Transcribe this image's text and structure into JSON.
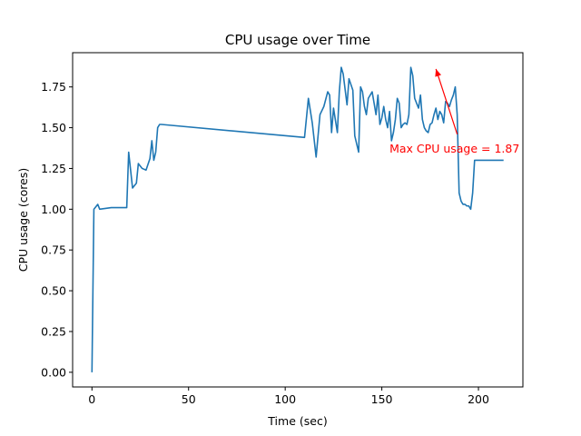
{
  "chart_data": {
    "type": "line",
    "title": "CPU usage over Time",
    "xlabel": "Time (sec)",
    "ylabel": "CPU usage (cores)",
    "xlim": [
      -10,
      223
    ],
    "ylim": [
      -0.09,
      1.96
    ],
    "xticks": [
      0,
      50,
      100,
      150,
      200
    ],
    "xtick_labels": [
      "0",
      "50",
      "100",
      "150",
      "200"
    ],
    "yticks": [
      0.0,
      0.25,
      0.5,
      0.75,
      1.0,
      1.25,
      1.5,
      1.75
    ],
    "ytick_labels": [
      "0.00",
      "0.25",
      "0.50",
      "0.75",
      "1.00",
      "1.25",
      "1.50",
      "1.75"
    ],
    "grid": false,
    "line_color": "#1f77b4",
    "series": [
      {
        "x": [
          0,
          1,
          3,
          4,
          10,
          18,
          19,
          21,
          23,
          24,
          26,
          28,
          30,
          31,
          32,
          33,
          34,
          35,
          36,
          110,
          112,
          114,
          116,
          118,
          120,
          122,
          123,
          124,
          125,
          127,
          128,
          129,
          130,
          132,
          133,
          135,
          136,
          138,
          139,
          140,
          141,
          142,
          143,
          145,
          146,
          147,
          148,
          149,
          150,
          151,
          152,
          153,
          154,
          155,
          156,
          157,
          158,
          159,
          160,
          161,
          162,
          163,
          164,
          165,
          166,
          167,
          168,
          169,
          170,
          171,
          172,
          173,
          174,
          175,
          176,
          177,
          178,
          179,
          180,
          181,
          182,
          183,
          184,
          185,
          186,
          187,
          188,
          189,
          190,
          191,
          192,
          193,
          194,
          195,
          196,
          197,
          198,
          199,
          200,
          201,
          202,
          203,
          204,
          205,
          206,
          207,
          208,
          209,
          210,
          211,
          212,
          213
        ],
        "y": [
          0.0,
          1.0,
          1.03,
          1.0,
          1.01,
          1.01,
          1.35,
          1.13,
          1.16,
          1.28,
          1.25,
          1.24,
          1.31,
          1.42,
          1.3,
          1.35,
          1.5,
          1.52,
          1.52,
          1.44,
          1.68,
          1.53,
          1.32,
          1.58,
          1.63,
          1.72,
          1.7,
          1.47,
          1.62,
          1.47,
          1.72,
          1.87,
          1.83,
          1.64,
          1.8,
          1.73,
          1.45,
          1.35,
          1.75,
          1.72,
          1.63,
          1.58,
          1.68,
          1.72,
          1.65,
          1.58,
          1.7,
          1.52,
          1.56,
          1.63,
          1.55,
          1.5,
          1.6,
          1.42,
          1.47,
          1.55,
          1.68,
          1.65,
          1.5,
          1.52,
          1.53,
          1.52,
          1.58,
          1.87,
          1.82,
          1.68,
          1.65,
          1.62,
          1.7,
          1.55,
          1.5,
          1.48,
          1.47,
          1.52,
          1.53,
          1.58,
          1.62,
          1.55,
          1.6,
          1.58,
          1.53,
          1.66,
          1.65,
          1.63,
          1.67,
          1.7,
          1.75,
          1.58,
          1.1,
          1.05,
          1.03,
          1.03,
          1.02,
          1.02,
          1.0,
          1.1,
          1.3,
          1.3,
          1.3,
          1.3,
          1.3,
          1.3,
          1.3,
          1.3,
          1.3,
          1.3,
          1.3,
          1.3,
          1.3,
          1.3,
          1.3,
          1.3
        ]
      }
    ],
    "annotation": {
      "text": "Max CPU usage = 1.87",
      "point": [
        178,
        1.86
      ],
      "text_pos": [
        154,
        1.37
      ],
      "arrow_from": [
        189,
        1.46
      ],
      "color": "#ff0000"
    }
  }
}
